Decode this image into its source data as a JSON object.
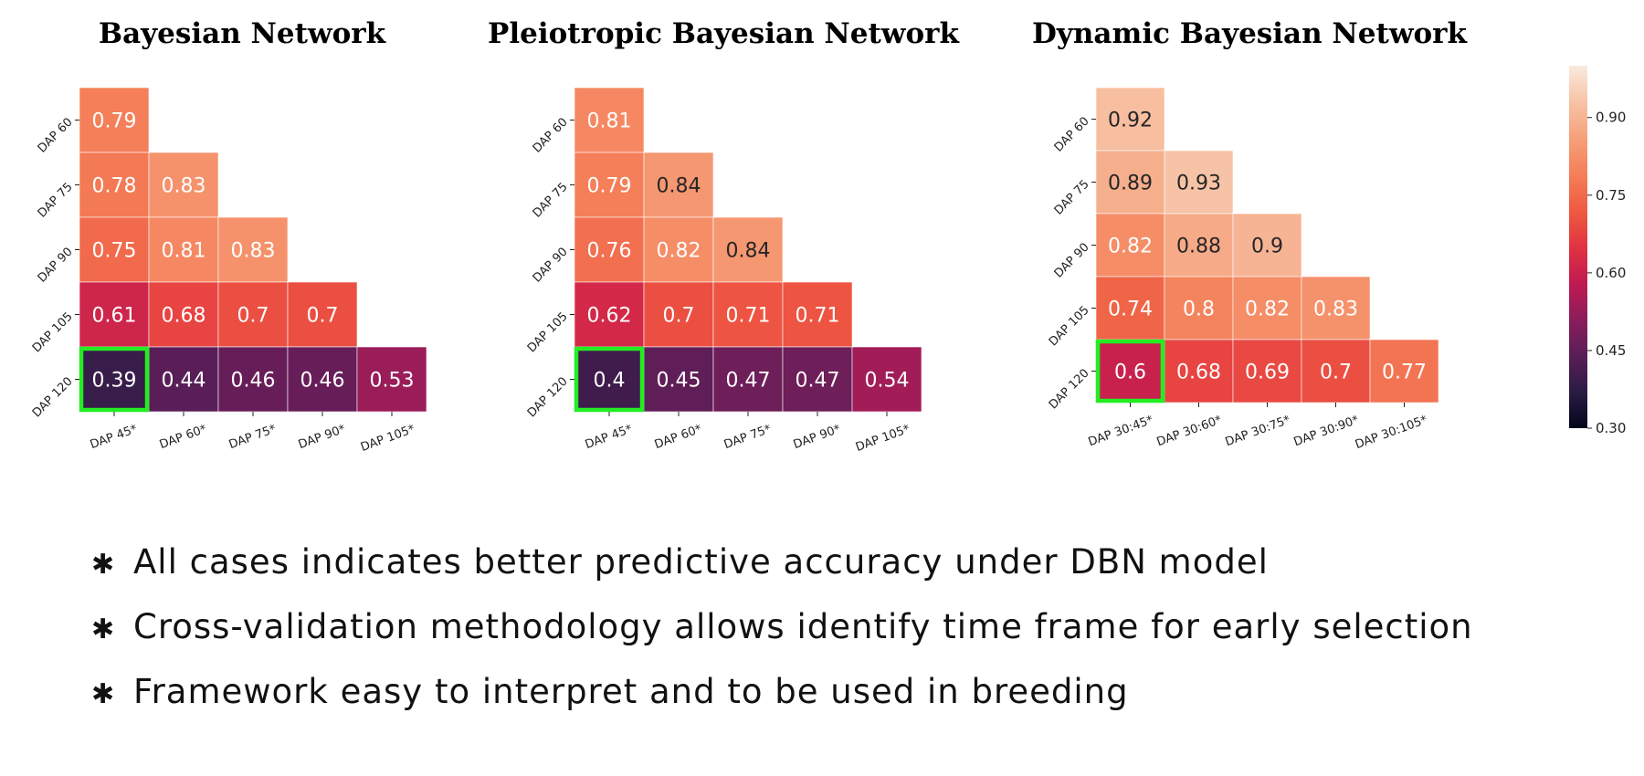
{
  "chart_data": [
    {
      "type": "heatmap",
      "title": "Bayesian Network",
      "row_labels": [
        "DAP 60",
        "DAP 75",
        "DAP 90",
        "DAP 105",
        "DAP 120"
      ],
      "col_labels": [
        "DAP 45*",
        "DAP 60*",
        "DAP 75*",
        "DAP 90*",
        "DAP 105*"
      ],
      "values": [
        [
          0.79,
          null,
          null,
          null,
          null
        ],
        [
          0.78,
          0.83,
          null,
          null,
          null
        ],
        [
          0.75,
          0.81,
          0.83,
          null,
          null
        ],
        [
          0.61,
          0.68,
          0.7,
          0.7,
          null
        ],
        [
          0.39,
          0.44,
          0.46,
          0.46,
          0.53
        ]
      ],
      "highlight_cell": {
        "row": 4,
        "col": 0,
        "color": "#22ee22"
      }
    },
    {
      "type": "heatmap",
      "title": "Pleiotropic Bayesian Network",
      "row_labels": [
        "DAP 60",
        "DAP 75",
        "DAP 90",
        "DAP 105",
        "DAP 120"
      ],
      "col_labels": [
        "DAP 45*",
        "DAP 60*",
        "DAP 75*",
        "DAP 90*",
        "DAP 105*"
      ],
      "values": [
        [
          0.81,
          null,
          null,
          null,
          null
        ],
        [
          0.79,
          0.84,
          null,
          null,
          null
        ],
        [
          0.76,
          0.82,
          0.84,
          null,
          null
        ],
        [
          0.62,
          0.7,
          0.71,
          0.71,
          null
        ],
        [
          0.4,
          0.45,
          0.47,
          0.47,
          0.54
        ]
      ],
      "highlight_cell": {
        "row": 4,
        "col": 0,
        "color": "#22ee22"
      }
    },
    {
      "type": "heatmap",
      "title": "Dynamic Bayesian Network",
      "row_labels": [
        "DAP 60",
        "DAP 75",
        "DAP 90",
        "DAP 105",
        "DAP 120"
      ],
      "col_labels": [
        "DAP 30:45*",
        "DAP 30:60*",
        "DAP 30:75*",
        "DAP 30:90*",
        "DAP 30:105*"
      ],
      "values": [
        [
          0.92,
          null,
          null,
          null,
          null
        ],
        [
          0.89,
          0.93,
          null,
          null,
          null
        ],
        [
          0.82,
          0.88,
          0.9,
          null,
          null
        ],
        [
          0.74,
          0.8,
          0.82,
          0.83,
          null
        ],
        [
          0.6,
          0.68,
          0.69,
          0.7,
          0.77
        ]
      ],
      "highlight_cell": {
        "row": 4,
        "col": 0,
        "color": "#22ee22"
      }
    }
  ],
  "colorbar": {
    "colormap": "rocket",
    "range": [
      0.3,
      1.0
    ],
    "ticks": [
      0.3,
      0.45,
      0.6,
      0.75,
      0.9
    ],
    "tick_labels": [
      "0.30",
      "0.45",
      "0.60",
      "0.75",
      "0.90"
    ]
  },
  "notes": {
    "bullet": "✱",
    "items": [
      "All cases indicates better predictive accuracy under DBN model",
      "Cross-validation methodology allows identify time frame for early selection",
      "Framework easy to interpret and to be used in breeding"
    ]
  }
}
